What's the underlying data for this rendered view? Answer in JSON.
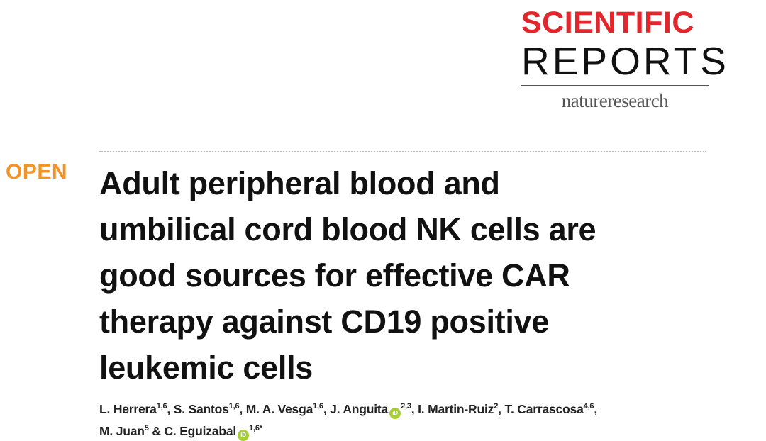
{
  "journal": {
    "name_line1": "SCIENTIFIC",
    "name_line2": "REPORTS",
    "publisher": "natureresearch",
    "accent": "#e3262b"
  },
  "badge": {
    "label": "OPEN",
    "color": "#f39323"
  },
  "article": {
    "title": "Adult peripheral blood and umbilical cord blood NK cells are good sources for effective CAR therapy against CD19 positive leukemic cells",
    "title_lines": [
      "Adult peripheral blood and",
      "umbilical cord blood NK cells are",
      "good sources for effective CAR",
      "therapy against CD19 positive",
      "leukemic cells"
    ],
    "authors": [
      {
        "name": "L. Herrera",
        "aff": "1,6",
        "sep": ", "
      },
      {
        "name": "S. Santos",
        "aff": "1,6",
        "sep": ", "
      },
      {
        "name": "M. A. Vesga",
        "aff": "1,6",
        "sep": ", "
      },
      {
        "name": "J. Anguita",
        "aff": "2,3",
        "orcid": true,
        "sep": ", "
      },
      {
        "name": "I. Martin-Ruiz",
        "aff": "2",
        "sep": ", "
      },
      {
        "name": "T. Carrascosa",
        "aff": "4,6",
        "sep": ", "
      },
      {
        "name": "M. Juan",
        "aff": "5",
        "sep": " & "
      },
      {
        "name": "C. Eguizabal",
        "aff": "1,6*",
        "orcid": true,
        "sep": ""
      }
    ],
    "orcid_icon": "orcid-icon"
  }
}
